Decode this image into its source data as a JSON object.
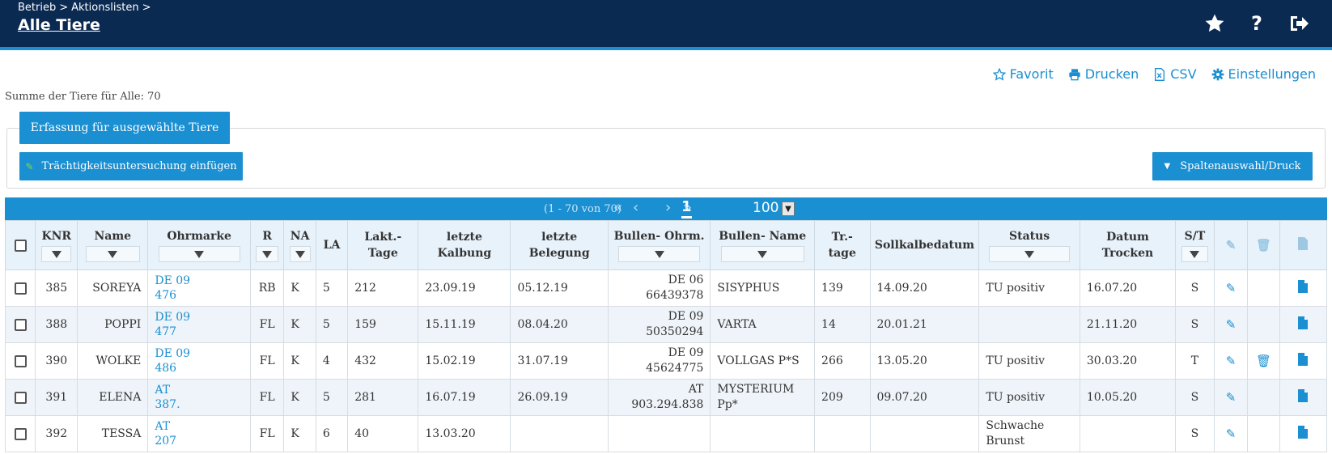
{
  "header": {
    "breadcrumb": [
      "Betrieb",
      ">",
      "Aktionslisten",
      ">"
    ],
    "title": "Alle Tiere",
    "icons": [
      "star-icon",
      "help-icon",
      "logout-icon"
    ]
  },
  "actions": {
    "favorit": "Favorit",
    "drucken": "Drucken",
    "csv": "CSV",
    "einstellungen": "Einstellungen"
  },
  "summary": "Summe der Tiere für Alle: 70",
  "buttons": {
    "capture": "Erfassung für ausgewählte Tiere",
    "pregnancy": "Trächtigkeitsuntersuchung einfügen",
    "columns": "Spaltenauswahl/Druck"
  },
  "pager": {
    "range": "(1 - 70 von 70)",
    "first": "«",
    "prev": "‹",
    "current": "1",
    "next": "›",
    "last": "»",
    "page_size": "100"
  },
  "columns": {
    "knr": "KNR",
    "name": "Name",
    "ohrmarke": "Ohrmarke",
    "r": "R",
    "na": "NA",
    "la": "LA",
    "lakt_1": "Lakt.-",
    "lakt_2": "Tage",
    "kalb_1": "letzte",
    "kalb_2": "Kalbung",
    "beleg_1": "letzte",
    "beleg_2": "Belegung",
    "bohr": "Bullen- Ohrm.",
    "bname": "Bullen- Name",
    "tr_1": "Tr.-",
    "tr_2": "tage",
    "soll": "Sollkalbedatum",
    "status": "Status",
    "dat_1": "Datum",
    "dat_2": "Trocken",
    "st": "S/T"
  },
  "rows": [
    {
      "knr": "385",
      "name": "SOREYA",
      "ohr1": "DE 09",
      "ohr2": "476",
      "r": "RB",
      "na": "K",
      "la": "5",
      "lakt": "212",
      "kalb": "23.09.19",
      "beleg": "05.12.19",
      "bohr1": "DE 06",
      "bohr2": "66439378",
      "bname1": "SISYPHUS",
      "bname2": "",
      "tr": "139",
      "soll": "14.09.20",
      "status1": "TU positiv",
      "status2": "",
      "trocken": "16.07.20",
      "st": "S",
      "delete": false
    },
    {
      "knr": "388",
      "name": "POPPI",
      "ohr1": "DE 09",
      "ohr2": "477",
      "r": "FL",
      "na": "K",
      "la": "5",
      "lakt": "159",
      "kalb": "15.11.19",
      "beleg": "08.04.20",
      "bohr1": "DE 09",
      "bohr2": "50350294",
      "bname1": "VARTA",
      "bname2": "",
      "tr": "14",
      "soll": "20.01.21",
      "status1": "",
      "status2": "",
      "trocken": "21.11.20",
      "st": "S",
      "delete": false
    },
    {
      "knr": "390",
      "name": "WOLKE",
      "ohr1": "DE 09",
      "ohr2": "486",
      "r": "FL",
      "na": "K",
      "la": "4",
      "lakt": "432",
      "kalb": "15.02.19",
      "beleg": "31.07.19",
      "bohr1": "DE 09",
      "bohr2": "45624775",
      "bname1": "VOLLGAS P*S",
      "bname2": "",
      "tr": "266",
      "soll": "13.05.20",
      "status1": "TU positiv",
      "status2": "",
      "trocken": "30.03.20",
      "st": "T",
      "delete": true
    },
    {
      "knr": "391",
      "name": "ELENA",
      "ohr1": "AT",
      "ohr2": "387.",
      "r": "FL",
      "na": "K",
      "la": "5",
      "lakt": "281",
      "kalb": "16.07.19",
      "beleg": "26.09.19",
      "bohr1": "AT",
      "bohr2": "903.294.838",
      "bname1": "MYSTERIUM",
      "bname2": "Pp*",
      "tr": "209",
      "soll": "09.07.20",
      "status1": "TU positiv",
      "status2": "",
      "trocken": "10.05.20",
      "st": "S",
      "delete": false
    },
    {
      "knr": "392",
      "name": "TESSA",
      "ohr1": "AT",
      "ohr2": "207",
      "r": "FL",
      "na": "K",
      "la": "6",
      "lakt": "40",
      "kalb": "13.03.20",
      "beleg": "",
      "bohr1": "",
      "bohr2": "",
      "bname1": "",
      "bname2": "",
      "tr": "",
      "soll": "",
      "status1": "Schwache",
      "status2": "Brunst",
      "trocken": "",
      "st": "S",
      "delete": false
    }
  ],
  "colors": {
    "header_bg": "#0b2a52",
    "accent": "#1a8fd1"
  }
}
